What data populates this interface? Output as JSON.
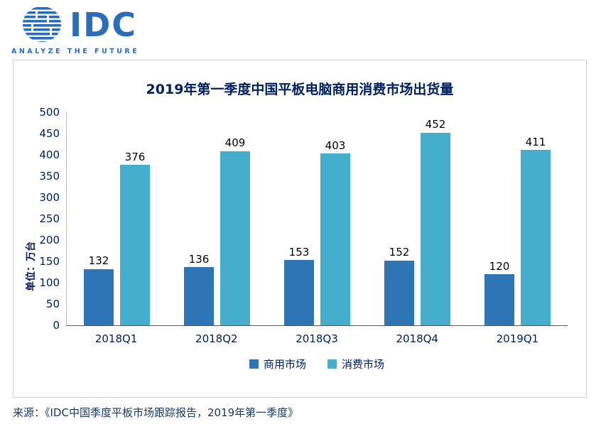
{
  "logo": {
    "text": "IDC",
    "tagline": "ANALYZE THE FUTURE",
    "brand_color": "#2b6db8"
  },
  "source": "来源：《IDC中国季度平板市场跟踪报告，2019年第一季度》",
  "chart_data": {
    "type": "bar",
    "title": "2019年第一季度中国平板电脑商用消费市场出货量",
    "ylabel": "单位：万台",
    "xlabel": "",
    "categories": [
      "2018Q1",
      "2018Q2",
      "2018Q3",
      "2018Q4",
      "2019Q1"
    ],
    "series": [
      {
        "name": "商用市场",
        "color": "#2e75b6",
        "values": [
          132,
          136,
          153,
          152,
          120
        ]
      },
      {
        "name": "消费市场",
        "color": "#45aecc",
        "values": [
          376,
          409,
          403,
          452,
          411
        ]
      }
    ],
    "ylim": [
      0,
      500
    ],
    "ytick_step": 50,
    "grid": false,
    "legend_position": "bottom",
    "value_labels": true
  }
}
